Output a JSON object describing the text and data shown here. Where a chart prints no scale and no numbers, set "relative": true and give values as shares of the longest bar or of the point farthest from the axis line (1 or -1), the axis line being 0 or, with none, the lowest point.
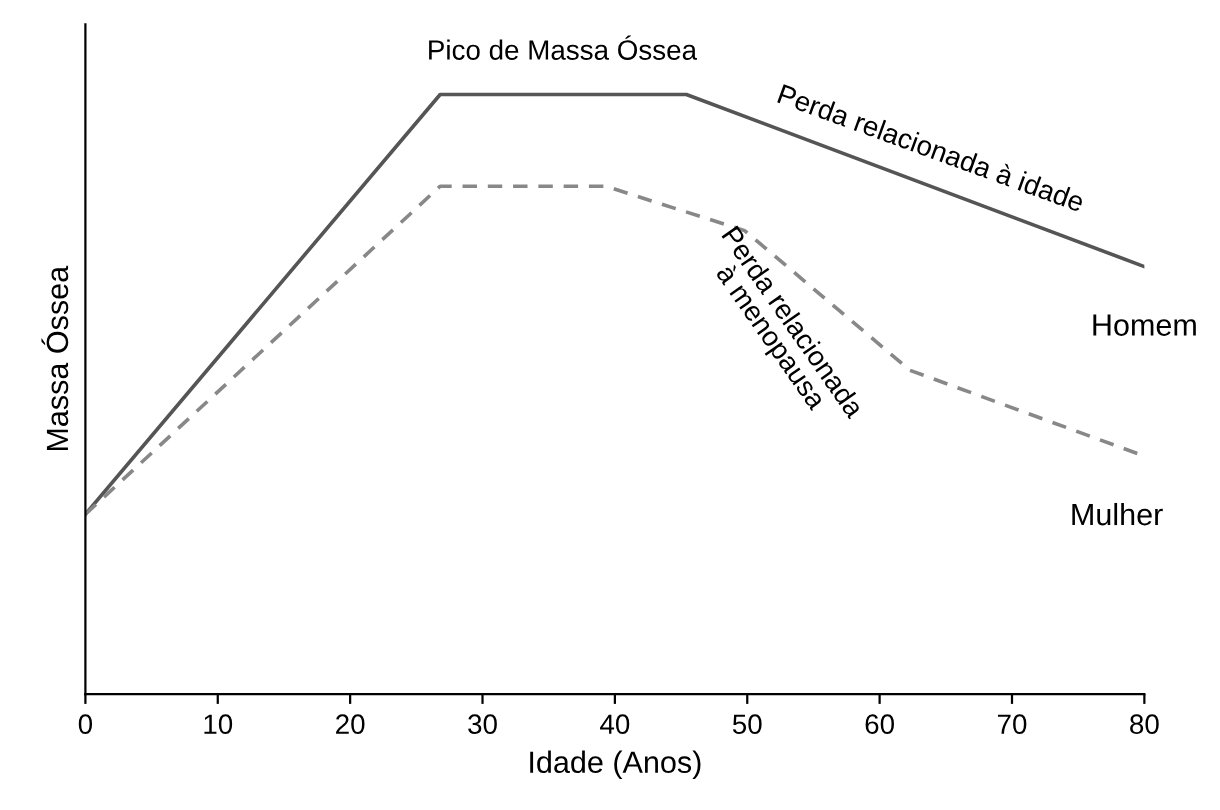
{
  "chart_data": {
    "type": "line",
    "relative": true,
    "xlabel": "Idade (Anos)",
    "ylabel": "Massa Óssea",
    "xlim": [
      0,
      80
    ],
    "xticks": [
      0,
      10,
      20,
      30,
      40,
      50,
      60,
      70,
      80
    ],
    "grid": false,
    "legend": false,
    "marker": "none",
    "series": [
      {
        "name": "Homem",
        "color": "#555555",
        "line_style": "solid",
        "x": [
          0,
          26.8,
          45.4,
          80
        ],
        "values": [
          0.3,
          1.0,
          1.0,
          0.713
        ]
      },
      {
        "name": "Mulher",
        "color": "#888888",
        "line_style": "dashed",
        "x": [
          0,
          26.8,
          39.3,
          49.8,
          62.3,
          80
        ],
        "values": [
          0.3,
          0.847,
          0.847,
          0.773,
          0.54,
          0.397
        ]
      }
    ],
    "annotations": [
      "Pico de Massa Óssea",
      "Perda relacionada à idade",
      "Perda relacionada\nà menopausa"
    ]
  }
}
